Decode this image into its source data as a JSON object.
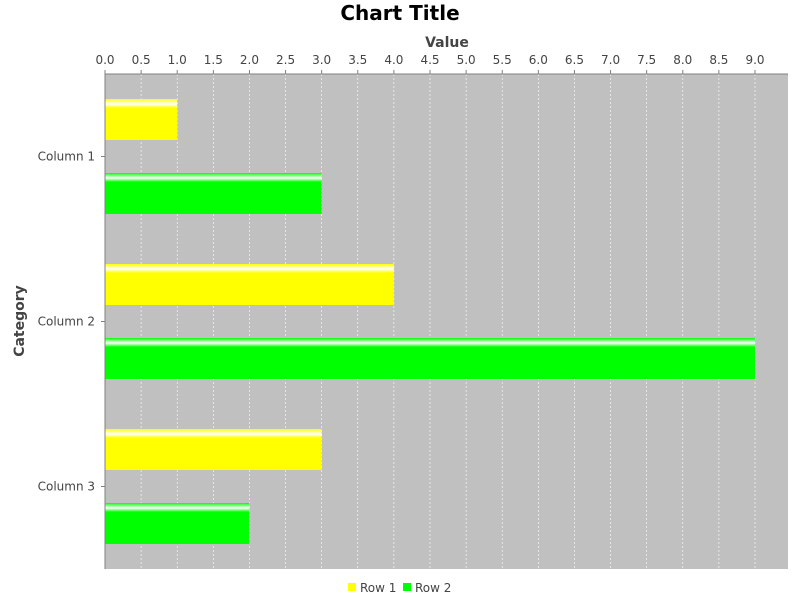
{
  "chart_data": {
    "type": "bar",
    "orientation": "horizontal",
    "title": "Chart Title",
    "xlabel": "Value",
    "ylabel": "Category",
    "categories": [
      "Column 1",
      "Column 2",
      "Column 3"
    ],
    "series": [
      {
        "name": "Row 1",
        "color": "#ffff00",
        "values": [
          1.0,
          4.0,
          3.0
        ]
      },
      {
        "name": "Row 2",
        "color": "#00ff00",
        "values": [
          3.0,
          9.0,
          2.0
        ]
      }
    ],
    "xlim": [
      0.0,
      9.0
    ],
    "x_ticks": [
      "0.0",
      "0.5",
      "1.0",
      "1.5",
      "2.0",
      "2.5",
      "3.0",
      "3.5",
      "4.0",
      "4.5",
      "5.0",
      "5.5",
      "6.0",
      "6.5",
      "7.0",
      "7.5",
      "8.0",
      "8.5",
      "9.0"
    ],
    "value_axis_position": "top",
    "grid": true,
    "plot_background": "#c0c0c0",
    "legend": "bottom"
  }
}
